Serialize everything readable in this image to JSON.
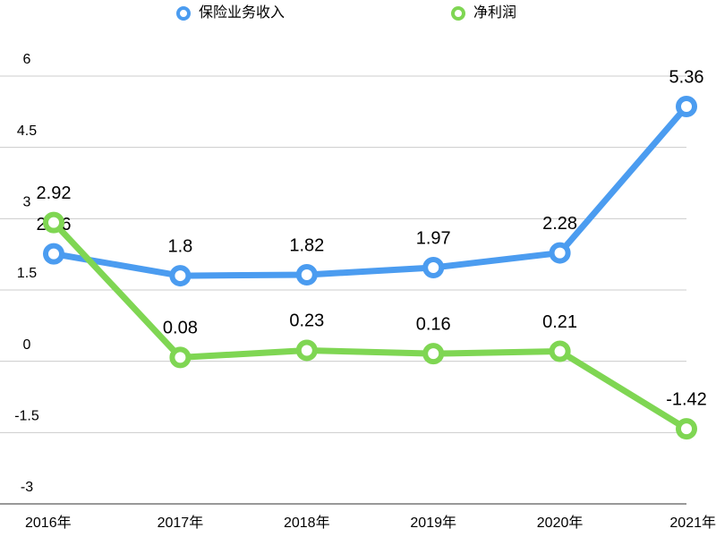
{
  "chart_data": {
    "type": "line",
    "categories": [
      "2016年",
      "2017年",
      "2018年",
      "2019年",
      "2020年",
      "2021年"
    ],
    "series": [
      {
        "name": "保险业务收入",
        "color": "#4b9cf0",
        "values": [
          2.26,
          1.8,
          1.82,
          1.97,
          2.28,
          5.36
        ]
      },
      {
        "name": "净利润",
        "color": "#7fd653",
        "values": [
          2.92,
          0.08,
          0.23,
          0.16,
          0.21,
          -1.42
        ]
      }
    ],
    "ylim": [
      -3,
      6
    ],
    "yticks": [
      -3,
      -1.5,
      0,
      1.5,
      3,
      4.5,
      6
    ],
    "grid": true,
    "legend": "top"
  }
}
